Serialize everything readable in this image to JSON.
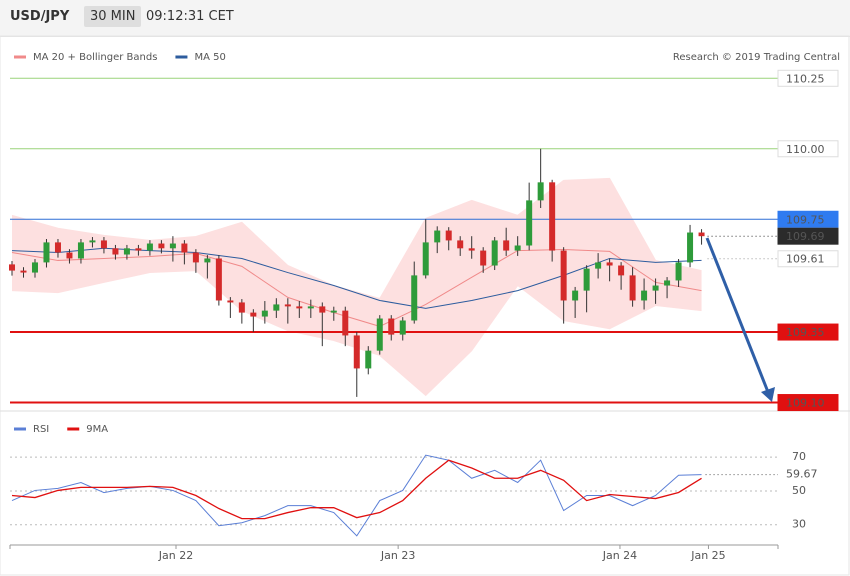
{
  "header": {
    "symbol": "USD/JPY",
    "interval": "30 MIN",
    "time": "09:12:31 CET"
  },
  "chart_data": [
    {
      "type": "candlestick",
      "credit": "Research © 2019 Trading Central",
      "up_color": "#2e9b3a",
      "down_color": "#d42a2a",
      "xlim": [
        0,
        67
      ],
      "ylim": [
        109.07,
        110.4
      ],
      "open": [
        109.59,
        109.568,
        109.561,
        109.597,
        109.668,
        109.632,
        109.611,
        109.668,
        109.675,
        109.647,
        109.625,
        109.647,
        109.639,
        109.664,
        109.647,
        109.664,
        109.632,
        109.597,
        109.611,
        109.462,
        109.455,
        109.419,
        109.405,
        109.426,
        109.448,
        109.441,
        109.434,
        109.441,
        109.419,
        109.426,
        109.338,
        109.221,
        109.284,
        109.398,
        109.341,
        109.391,
        109.551,
        109.668,
        109.71,
        109.675,
        109.647,
        109.639,
        109.586,
        109.675,
        109.639,
        109.657,
        109.817,
        109.881,
        109.639,
        109.462,
        109.497,
        109.575,
        109.597,
        109.586,
        109.551,
        109.462,
        109.497,
        109.515,
        109.533,
        109.597,
        109.703
      ],
      "high": [
        109.602,
        109.58,
        109.609,
        109.68,
        109.68,
        109.644,
        109.68,
        109.687,
        109.687,
        109.659,
        109.659,
        109.659,
        109.676,
        109.676,
        109.69,
        109.676,
        109.644,
        109.623,
        109.623,
        109.474,
        109.467,
        109.431,
        109.46,
        109.47,
        109.47,
        109.46,
        109.465,
        109.455,
        109.44,
        109.44,
        109.35,
        109.3,
        109.41,
        109.41,
        109.403,
        109.6,
        109.75,
        109.725,
        109.722,
        109.69,
        109.69,
        109.651,
        109.687,
        109.72,
        109.69,
        109.88,
        110.0,
        109.89,
        109.651,
        109.51,
        109.587,
        109.63,
        109.61,
        109.598,
        109.58,
        109.54,
        109.54,
        109.545,
        109.609,
        109.73,
        109.715
      ],
      "low": [
        109.55,
        109.543,
        109.543,
        109.579,
        109.614,
        109.593,
        109.593,
        109.65,
        109.629,
        109.607,
        109.607,
        109.621,
        109.621,
        109.629,
        109.6,
        109.59,
        109.56,
        109.54,
        109.444,
        109.4,
        109.38,
        109.35,
        109.38,
        109.4,
        109.38,
        109.4,
        109.4,
        109.3,
        109.39,
        109.3,
        109.12,
        109.2,
        109.27,
        109.32,
        109.32,
        109.38,
        109.54,
        109.63,
        109.64,
        109.62,
        109.61,
        109.56,
        109.57,
        109.62,
        109.62,
        109.64,
        109.79,
        109.6,
        109.38,
        109.4,
        109.42,
        109.54,
        109.53,
        109.5,
        109.44,
        109.43,
        109.45,
        109.47,
        109.51,
        109.58,
        109.66
      ],
      "close": [
        109.568,
        109.561,
        109.597,
        109.668,
        109.632,
        109.611,
        109.668,
        109.675,
        109.647,
        109.625,
        109.647,
        109.639,
        109.664,
        109.647,
        109.664,
        109.632,
        109.597,
        109.611,
        109.462,
        109.455,
        109.419,
        109.405,
        109.426,
        109.448,
        109.441,
        109.434,
        109.441,
        109.419,
        109.426,
        109.338,
        109.221,
        109.284,
        109.398,
        109.341,
        109.391,
        109.551,
        109.668,
        109.71,
        109.675,
        109.647,
        109.639,
        109.586,
        109.675,
        109.639,
        109.657,
        109.817,
        109.881,
        109.639,
        109.462,
        109.497,
        109.575,
        109.597,
        109.586,
        109.551,
        109.462,
        109.497,
        109.515,
        109.533,
        109.597,
        109.703,
        109.69
      ],
      "series": [
        {
          "name": "MA 20 + Bollinger Bands",
          "color": "#f08a8a",
          "band_color": "#fde0e0",
          "x": [
            0,
            4,
            8,
            12,
            16,
            20,
            24,
            28,
            32,
            36,
            40,
            44,
            48,
            52,
            56,
            60
          ],
          "values": [
            109.632,
            109.604,
            109.611,
            109.618,
            109.629,
            109.583,
            109.473,
            109.419,
            109.37,
            109.448,
            109.544,
            109.639,
            109.643,
            109.636,
            109.526,
            109.497
          ],
          "upper": [
            109.764,
            109.718,
            109.693,
            109.675,
            109.689,
            109.739,
            109.586,
            109.515,
            109.469,
            109.753,
            109.817,
            109.764,
            109.888,
            109.895,
            109.604,
            109.568
          ],
          "lower": [
            109.497,
            109.49,
            109.526,
            109.561,
            109.568,
            109.426,
            109.355,
            109.32,
            109.267,
            109.125,
            109.284,
            109.515,
            109.391,
            109.362,
            109.444,
            109.426
          ]
        },
        {
          "name": "MA 50",
          "color": "#2d5c9e",
          "x": [
            0,
            4,
            8,
            12,
            16,
            20,
            24,
            28,
            32,
            36,
            40,
            44,
            48,
            52,
            56,
            60
          ],
          "values": [
            109.639,
            109.632,
            109.647,
            109.639,
            109.632,
            109.611,
            109.561,
            109.515,
            109.462,
            109.434,
            109.462,
            109.497,
            109.551,
            109.611,
            109.597,
            109.604
          ]
        }
      ],
      "levels": [
        {
          "value": 110.25,
          "label": "110.25",
          "color": "#9ad47a",
          "text_color": "#3c9a12",
          "box": "#ffffff",
          "line": "solid"
        },
        {
          "value": 110,
          "label": "110.00",
          "color": "#9ad47a",
          "text_color": "#3c9a12",
          "box": "#ffffff",
          "line": "solid"
        },
        {
          "value": 109.75,
          "color": "#2f6fd6",
          "text_color": "#ffffff",
          "box": "#2f7bf0",
          "line": "solid"
        },
        {
          "value": 109.69,
          "color": "#333333",
          "text_color": "#ffffff",
          "box": "#2b2b2b",
          "line": "dotted"
        },
        {
          "value": 109.61,
          "color": "#999999",
          "text_color": "#2d5c9e",
          "box": "#ffffff",
          "line": "dotted"
        },
        {
          "value": 109.35,
          "color": "#e01010",
          "text_color": "#ffffff",
          "box": "#e01010",
          "line": "thick"
        },
        {
          "value": 109.1,
          "label": "109.10",
          "color": "#e01010",
          "text_color": "#ffffff",
          "box": "#e01010",
          "line": "thick"
        }
      ]
    },
    {
      "type": "line",
      "xlim": [
        0,
        67
      ],
      "ylim": [
        18,
        92
      ],
      "yticks": [
        30,
        50,
        70
      ],
      "xticks": [
        {
          "value": 14.27,
          "label": "Jan 22"
        },
        {
          "value": 33.6,
          "label": "Jan 23"
        },
        {
          "value": 52.9,
          "label": "Jan 24"
        },
        {
          "value": 60.6,
          "label": "Jan 25"
        }
      ],
      "series": [
        {
          "name": "RSI",
          "color": "#5b7fd6",
          "x": [
            0,
            2,
            4,
            6,
            8,
            10,
            12,
            14,
            16,
            18,
            20,
            22,
            24,
            26,
            28,
            30,
            32,
            34,
            36,
            38,
            40,
            42,
            44,
            46,
            48,
            50,
            52,
            54,
            56,
            58,
            60
          ],
          "values": [
            44.3,
            50.3,
            51.5,
            55,
            49,
            51.5,
            52.7,
            50.3,
            44.3,
            29.4,
            31.2,
            35.4,
            41.3,
            41.3,
            37.2,
            23.4,
            44.3,
            50.3,
            71.2,
            68.2,
            57.5,
            62.2,
            55,
            68.2,
            38.4,
            47.3,
            47.3,
            41.3,
            47.3,
            59.3,
            59.67
          ]
        },
        {
          "name": "9MA",
          "color": "#e01010",
          "x": [
            0,
            2,
            4,
            6,
            8,
            10,
            12,
            14,
            16,
            18,
            20,
            22,
            24,
            26,
            28,
            30,
            32,
            34,
            36,
            38,
            40,
            42,
            44,
            46,
            48,
            50,
            52,
            54,
            56,
            58,
            60
          ],
          "values": [
            47.3,
            46.1,
            50.3,
            52.1,
            52.1,
            52.1,
            52.7,
            52.1,
            47.3,
            39.6,
            33.6,
            33.6,
            37.2,
            40.1,
            40.1,
            34.2,
            37.2,
            44.3,
            57.5,
            68.2,
            63.6,
            57.5,
            57.5,
            62.2,
            56.3,
            44.3,
            47.9,
            46.7,
            45.5,
            49.1,
            57.5
          ]
        }
      ],
      "levels": [
        {
          "value": 59.67,
          "color": "#5b7fd6"
        }
      ]
    }
  ]
}
